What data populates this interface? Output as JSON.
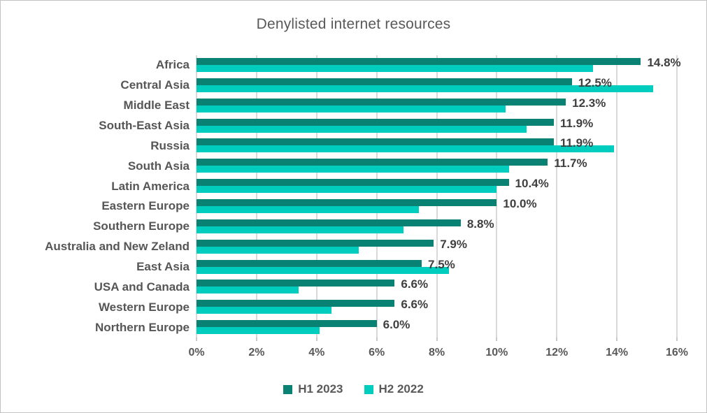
{
  "chart_data": {
    "type": "bar",
    "orientation": "horizontal",
    "title": "Denylisted internet resources",
    "categories": [
      "Africa",
      "Central Asia",
      "Middle East",
      "South-East Asia",
      "Russia",
      "South Asia",
      "Latin America",
      "Eastern Europe",
      "Southern Europe",
      "Australia and New Zeland",
      "East Asia",
      "USA and Canada",
      "Western Europe",
      "Northern Europe"
    ],
    "series": [
      {
        "name": "H1 2023",
        "color": "#0a8273",
        "values": [
          14.8,
          12.5,
          12.3,
          11.9,
          11.9,
          11.7,
          10.4,
          10.0,
          8.8,
          7.9,
          7.5,
          6.6,
          6.6,
          6.0
        ],
        "data_labels": [
          "14.8%",
          "12.5%",
          "12.3%",
          "11.9%",
          "11.9%",
          "11.7%",
          "10.4%",
          "10.0%",
          "8.8%",
          "7.9%",
          "7.5%",
          "6.6%",
          "6.6%",
          "6.0%"
        ]
      },
      {
        "name": "H2 2022",
        "color": "#00cdbe",
        "values": [
          13.2,
          15.2,
          10.3,
          11.0,
          13.9,
          10.4,
          10.0,
          7.4,
          6.9,
          5.4,
          8.4,
          3.4,
          4.5,
          4.1
        ]
      }
    ],
    "xlim": [
      0,
      16
    ],
    "x_ticks": [
      "0%",
      "2%",
      "4%",
      "6%",
      "8%",
      "10%",
      "12%",
      "14%",
      "16%"
    ],
    "grid": true,
    "legend_position": "bottom",
    "colors": {
      "grid": "#d9d9d9",
      "title_text": "#595959",
      "axis_text": "#595959",
      "data_label_text": "#3f3f3f"
    }
  }
}
